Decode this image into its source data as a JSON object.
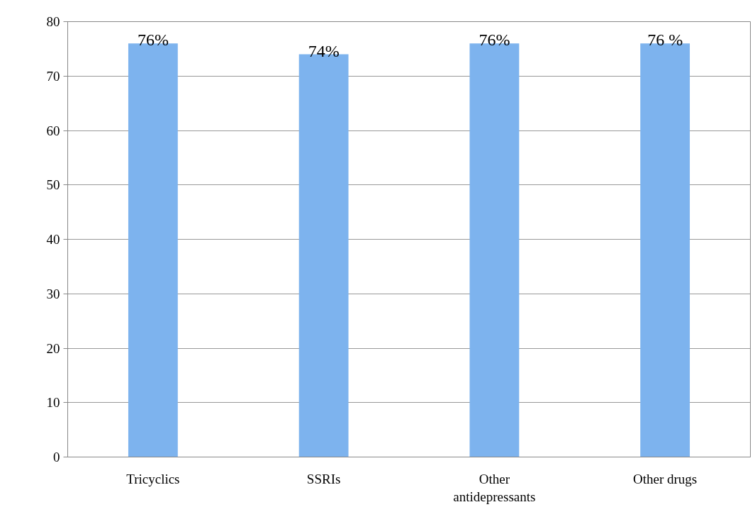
{
  "chart_data": {
    "type": "bar",
    "categories": [
      "Tricyclics",
      "SSRIs",
      "Other antidepressants",
      "Other drugs"
    ],
    "values": [
      76,
      74,
      76,
      76
    ],
    "value_labels": [
      "76%",
      "74%",
      "76%",
      "76 %"
    ],
    "color": "#7db3ee",
    "ylim": [
      0,
      80
    ],
    "yticks": [
      0,
      10,
      20,
      30,
      40,
      50,
      60,
      70,
      80
    ],
    "grid": "y"
  }
}
